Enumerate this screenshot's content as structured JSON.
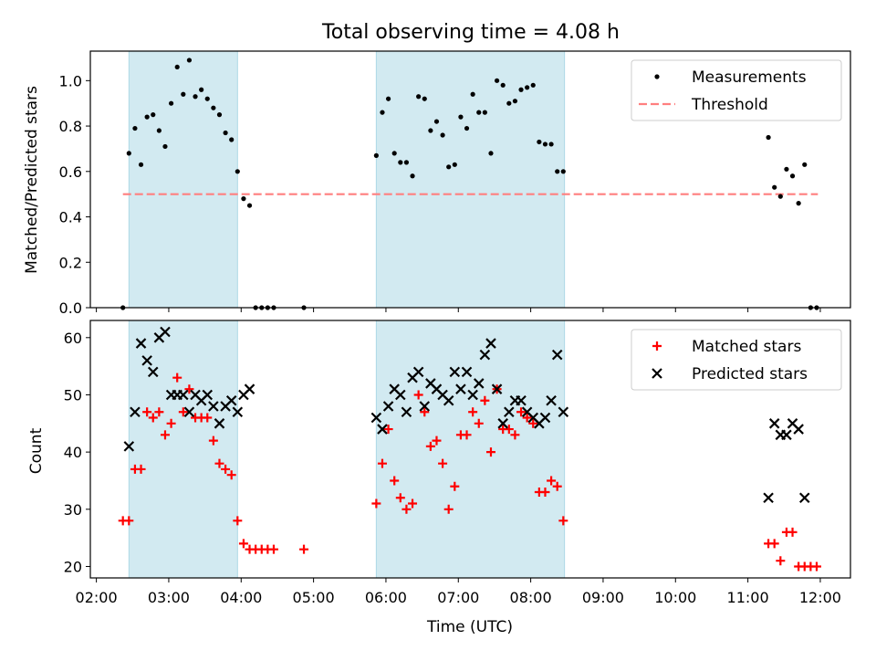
{
  "title": "Total observing time = 4.08 h",
  "colors": {
    "shade": "#add8e6",
    "measurements": "#000000",
    "threshold": "#ff7f7f",
    "matched": "#ff0000",
    "predicted": "#000000"
  },
  "chart_data": [
    {
      "type": "scatter",
      "ylabel": "Matched/Predicted stars",
      "xlim": [
        "01:55",
        "12:25"
      ],
      "ylim": [
        0,
        1.13
      ],
      "y_ticks": [
        "0.0",
        "0.2",
        "0.4",
        "0.6",
        "0.8",
        "1.0"
      ],
      "grid": false,
      "legend": "top-right",
      "shaded_intervals": [
        [
          "02:27",
          "03:57"
        ],
        [
          "05:52",
          "08:28"
        ]
      ],
      "threshold": {
        "name": "Threshold",
        "y": 0.5,
        "x_range": [
          "02:22",
          "11:58"
        ]
      },
      "series": [
        {
          "name": "Measurements",
          "points": [
            [
              "02:22",
              0.0
            ],
            [
              "02:27",
              0.68
            ],
            [
              "02:32",
              0.79
            ],
            [
              "02:37",
              0.63
            ],
            [
              "02:42",
              0.84
            ],
            [
              "02:47",
              0.85
            ],
            [
              "02:52",
              0.78
            ],
            [
              "02:57",
              0.71
            ],
            [
              "03:02",
              0.9
            ],
            [
              "03:07",
              1.06
            ],
            [
              "03:12",
              0.94
            ],
            [
              "03:17",
              1.09
            ],
            [
              "03:22",
              0.93
            ],
            [
              "03:27",
              0.96
            ],
            [
              "03:32",
              0.92
            ],
            [
              "03:37",
              0.88
            ],
            [
              "03:42",
              0.85
            ],
            [
              "03:47",
              0.77
            ],
            [
              "03:52",
              0.74
            ],
            [
              "03:57",
              0.6
            ],
            [
              "04:02",
              0.48
            ],
            [
              "04:07",
              0.45
            ],
            [
              "04:12",
              0.0
            ],
            [
              "04:17",
              0.0
            ],
            [
              "04:22",
              0.0
            ],
            [
              "04:27",
              0.0
            ],
            [
              "04:52",
              0.0
            ],
            [
              "05:52",
              0.67
            ],
            [
              "05:57",
              0.86
            ],
            [
              "06:02",
              0.92
            ],
            [
              "06:07",
              0.68
            ],
            [
              "06:12",
              0.64
            ],
            [
              "06:17",
              0.64
            ],
            [
              "06:22",
              0.58
            ],
            [
              "06:27",
              0.93
            ],
            [
              "06:32",
              0.92
            ],
            [
              "06:37",
              0.78
            ],
            [
              "06:42",
              0.82
            ],
            [
              "06:47",
              0.76
            ],
            [
              "06:52",
              0.62
            ],
            [
              "06:57",
              0.63
            ],
            [
              "07:02",
              0.84
            ],
            [
              "07:07",
              0.79
            ],
            [
              "07:12",
              0.94
            ],
            [
              "07:17",
              0.86
            ],
            [
              "07:22",
              0.86
            ],
            [
              "07:27",
              0.68
            ],
            [
              "07:32",
              1.0
            ],
            [
              "07:37",
              0.98
            ],
            [
              "07:42",
              0.9
            ],
            [
              "07:47",
              0.91
            ],
            [
              "07:52",
              0.96
            ],
            [
              "07:57",
              0.97
            ],
            [
              "08:02",
              0.98
            ],
            [
              "08:07",
              0.73
            ],
            [
              "08:12",
              0.72
            ],
            [
              "08:17",
              0.72
            ],
            [
              "08:22",
              0.6
            ],
            [
              "08:27",
              0.6
            ],
            [
              "11:17",
              0.75
            ],
            [
              "11:22",
              0.53
            ],
            [
              "11:27",
              0.49
            ],
            [
              "11:32",
              0.61
            ],
            [
              "11:37",
              0.58
            ],
            [
              "11:42",
              0.46
            ],
            [
              "11:47",
              0.63
            ],
            [
              "11:52",
              0.0
            ],
            [
              "11:57",
              0.0
            ]
          ]
        }
      ]
    },
    {
      "type": "scatter",
      "xlabel": "Time (UTC)",
      "ylabel": "Count",
      "xlim": [
        "01:55",
        "12:25"
      ],
      "ylim": [
        18,
        63
      ],
      "x_ticks": [
        "02:00",
        "03:00",
        "04:00",
        "05:00",
        "06:00",
        "07:00",
        "08:00",
        "09:00",
        "10:00",
        "11:00",
        "12:00"
      ],
      "y_ticks": [
        "20",
        "30",
        "40",
        "50",
        "60"
      ],
      "grid": false,
      "legend": "top-right",
      "shaded_intervals": [
        [
          "02:27",
          "03:57"
        ],
        [
          "05:52",
          "08:28"
        ]
      ],
      "series": [
        {
          "name": "Matched stars",
          "marker": "plus",
          "points": [
            [
              "02:22",
              28
            ],
            [
              "02:27",
              28
            ],
            [
              "02:32",
              37
            ],
            [
              "02:37",
              37
            ],
            [
              "02:42",
              47
            ],
            [
              "02:47",
              46
            ],
            [
              "02:52",
              47
            ],
            [
              "02:57",
              43
            ],
            [
              "03:02",
              45
            ],
            [
              "03:07",
              53
            ],
            [
              "03:12",
              47
            ],
            [
              "03:17",
              51
            ],
            [
              "03:22",
              46
            ],
            [
              "03:27",
              46
            ],
            [
              "03:32",
              46
            ],
            [
              "03:37",
              42
            ],
            [
              "03:42",
              38
            ],
            [
              "03:47",
              37
            ],
            [
              "03:52",
              36
            ],
            [
              "03:57",
              28
            ],
            [
              "04:02",
              24
            ],
            [
              "04:07",
              23
            ],
            [
              "04:12",
              23
            ],
            [
              "04:17",
              23
            ],
            [
              "04:22",
              23
            ],
            [
              "04:27",
              23
            ],
            [
              "04:52",
              23
            ],
            [
              "05:52",
              31
            ],
            [
              "05:57",
              38
            ],
            [
              "06:02",
              44
            ],
            [
              "06:07",
              35
            ],
            [
              "06:12",
              32
            ],
            [
              "06:17",
              30
            ],
            [
              "06:22",
              31
            ],
            [
              "06:27",
              50
            ],
            [
              "06:32",
              47
            ],
            [
              "06:37",
              41
            ],
            [
              "06:42",
              42
            ],
            [
              "06:47",
              38
            ],
            [
              "06:52",
              30
            ],
            [
              "06:57",
              34
            ],
            [
              "07:02",
              43
            ],
            [
              "07:07",
              43
            ],
            [
              "07:12",
              47
            ],
            [
              "07:17",
              45
            ],
            [
              "07:22",
              49
            ],
            [
              "07:27",
              40
            ],
            [
              "07:32",
              51
            ],
            [
              "07:37",
              44
            ],
            [
              "07:42",
              44
            ],
            [
              "07:47",
              43
            ],
            [
              "07:52",
              47
            ],
            [
              "07:57",
              46
            ],
            [
              "08:02",
              45
            ],
            [
              "08:07",
              33
            ],
            [
              "08:12",
              33
            ],
            [
              "08:17",
              35
            ],
            [
              "08:22",
              34
            ],
            [
              "08:27",
              28
            ],
            [
              "11:17",
              24
            ],
            [
              "11:22",
              24
            ],
            [
              "11:27",
              21
            ],
            [
              "11:32",
              26
            ],
            [
              "11:37",
              26
            ],
            [
              "11:42",
              20
            ],
            [
              "11:47",
              20
            ],
            [
              "11:52",
              20
            ],
            [
              "11:57",
              20
            ]
          ]
        },
        {
          "name": "Predicted stars",
          "marker": "x",
          "points": [
            [
              "02:27",
              41
            ],
            [
              "02:32",
              47
            ],
            [
              "02:37",
              59
            ],
            [
              "02:42",
              56
            ],
            [
              "02:47",
              54
            ],
            [
              "02:52",
              60
            ],
            [
              "02:57",
              61
            ],
            [
              "03:02",
              50
            ],
            [
              "03:07",
              50
            ],
            [
              "03:12",
              50
            ],
            [
              "03:17",
              47
            ],
            [
              "03:22",
              50
            ],
            [
              "03:27",
              49
            ],
            [
              "03:32",
              50
            ],
            [
              "03:37",
              48
            ],
            [
              "03:42",
              45
            ],
            [
              "03:47",
              48
            ],
            [
              "03:52",
              49
            ],
            [
              "03:57",
              47
            ],
            [
              "04:02",
              50
            ],
            [
              "04:07",
              51
            ],
            [
              "05:52",
              46
            ],
            [
              "05:57",
              44
            ],
            [
              "06:02",
              48
            ],
            [
              "06:07",
              51
            ],
            [
              "06:12",
              50
            ],
            [
              "06:17",
              47
            ],
            [
              "06:22",
              53
            ],
            [
              "06:27",
              54
            ],
            [
              "06:32",
              48
            ],
            [
              "06:37",
              52
            ],
            [
              "06:42",
              51
            ],
            [
              "06:47",
              50
            ],
            [
              "06:52",
              49
            ],
            [
              "06:57",
              54
            ],
            [
              "07:02",
              51
            ],
            [
              "07:07",
              54
            ],
            [
              "07:12",
              50
            ],
            [
              "07:17",
              52
            ],
            [
              "07:22",
              57
            ],
            [
              "07:27",
              59
            ],
            [
              "07:32",
              51
            ],
            [
              "07:37",
              45
            ],
            [
              "07:42",
              47
            ],
            [
              "07:47",
              49
            ],
            [
              "07:52",
              49
            ],
            [
              "07:57",
              47
            ],
            [
              "08:02",
              46
            ],
            [
              "08:07",
              45
            ],
            [
              "08:12",
              46
            ],
            [
              "08:17",
              49
            ],
            [
              "08:22",
              57
            ],
            [
              "08:27",
              47
            ],
            [
              "11:17",
              32
            ],
            [
              "11:22",
              45
            ],
            [
              "11:27",
              43
            ],
            [
              "11:32",
              43
            ],
            [
              "11:37",
              45
            ],
            [
              "11:42",
              44
            ],
            [
              "11:47",
              32
            ]
          ]
        }
      ]
    }
  ]
}
